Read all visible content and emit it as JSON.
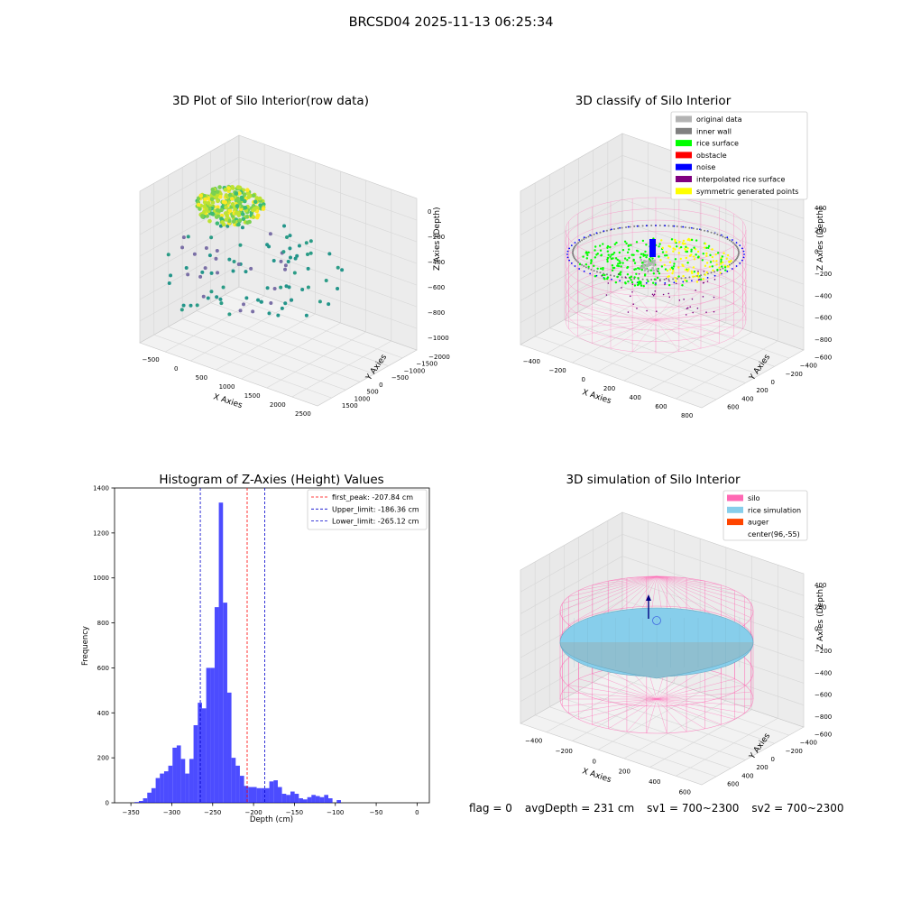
{
  "figure": {
    "suptitle": "BRCSD04 2025-11-13 06:25:34",
    "footer": {
      "flag": "flag = 0",
      "avg_depth": "avgDepth = 231 cm",
      "sv1": "sv1 = 700~2300",
      "sv2": "sv2 = 700~2300"
    }
  },
  "chart_data": [
    {
      "type": "scatter",
      "title": "3D Plot of Silo Interior(row data)",
      "xlabel": "X Axies",
      "ylabel": "Y Axies",
      "zlabel": "Z Axies (Depth)",
      "x_ticks": [
        "−500",
        "0",
        "500",
        "1000",
        "1500",
        "2000",
        "2500"
      ],
      "y_ticks": [
        "1500",
        "1000",
        "500",
        "0",
        "−500",
        "−1000",
        "−1500",
        "−2000"
      ],
      "z_ticks": [
        "0",
        "−200",
        "−400",
        "−600",
        "−800",
        "−1000"
      ],
      "xlim": [
        -600,
        2700
      ],
      "ylim": [
        -2100,
        1700
      ],
      "zlim": [
        -1050,
        50
      ],
      "colormap": "viridis",
      "cluster": {
        "x": [
          0,
          600
        ],
        "y": [
          200,
          1400
        ],
        "z": [
          -300,
          -100
        ],
        "note_colors": [
          "#fde725",
          "#7ad151",
          "#22a884"
        ]
      }
    },
    {
      "type": "scatter",
      "title": "3D classify of Silo Interior",
      "xlabel": "X Axies",
      "ylabel": "Y Axies",
      "zlabel": "Z Axies (Depth)",
      "x_ticks": [
        "−400",
        "−200",
        "0",
        "200",
        "400",
        "600",
        "800"
      ],
      "y_ticks": [
        "600",
        "400",
        "200",
        "0",
        "−200",
        "−400",
        "−600"
      ],
      "z_ticks": [
        "400",
        "200",
        "0",
        "−200",
        "−400",
        "−600",
        "−800"
      ],
      "legend_position": "top-right",
      "legend": [
        {
          "label": "original data",
          "color": "#b3b3b3"
        },
        {
          "label": "inner wall",
          "color": "#808080"
        },
        {
          "label": "rice surface",
          "color": "#00ff00"
        },
        {
          "label": "obstacle",
          "color": "#ff0000"
        },
        {
          "label": "noise",
          "color": "#0000ff"
        },
        {
          "label": "interpolated rice surface",
          "color": "#800080"
        },
        {
          "label": "symmetric generated points",
          "color": "#ffff00"
        }
      ],
      "silo_color": "#ff69b4"
    },
    {
      "type": "bar",
      "title": "Histogram of Z-Axies (Height) Values",
      "xlabel": "Depth (cm)",
      "ylabel": "Frequency",
      "xlim": [
        -370,
        15
      ],
      "ylim": [
        0,
        1400
      ],
      "x_ticks": [
        -350,
        -300,
        -250,
        -200,
        -150,
        -100,
        -50,
        0
      ],
      "y_ticks": [
        0,
        200,
        400,
        600,
        800,
        1000,
        1200,
        1400
      ],
      "bar_color": "#0000ff",
      "bin_width": 5.15,
      "bins_left": [
        -345.5,
        -340.3,
        -335.2,
        -330.0,
        -324.9,
        -319.7,
        -314.6,
        -309.4,
        -304.3,
        -299.1,
        -294.0,
        -288.8,
        -283.7,
        -278.5,
        -273.4,
        -268.2,
        -263.1,
        -257.9,
        -252.8,
        -247.6,
        -242.5,
        -237.3,
        -232.2,
        -227.0,
        -221.9,
        -216.7,
        -211.6,
        -206.4,
        -201.3,
        -196.1,
        -191.0,
        -185.8,
        -180.7,
        -175.5,
        -170.4,
        -165.2,
        -160.1,
        -154.9,
        -149.8,
        -144.6,
        -139.5,
        -134.3,
        -129.2,
        -124.0,
        -118.9,
        -113.7,
        -108.6,
        -103.4,
        -98.3,
        -93.1,
        -88.0,
        -82.8,
        -77.7,
        -72.5,
        -67.4,
        -62.2,
        -57.1,
        -51.9,
        -46.8,
        -41.6,
        -36.5,
        -31.3,
        -26.2,
        -21.0,
        -15.9,
        -10.7,
        -5.6,
        -0.4
      ],
      "values": [
        3,
        8,
        20,
        45,
        65,
        110,
        130,
        140,
        165,
        245,
        255,
        195,
        130,
        195,
        345,
        445,
        420,
        600,
        600,
        870,
        1335,
        890,
        490,
        200,
        165,
        120,
        75,
        70,
        70,
        65,
        65,
        65,
        95,
        100,
        70,
        40,
        35,
        50,
        40,
        20,
        15,
        25,
        35,
        30,
        25,
        35,
        20,
        0,
        12,
        0,
        0,
        0,
        0,
        0,
        0,
        0,
        0,
        0,
        0,
        0,
        0,
        0,
        0,
        0,
        0,
        0,
        0,
        0
      ],
      "legend_position": "top-right",
      "lines": [
        {
          "label": "first_peak: -207.84 cm",
          "x": -207.84,
          "color": "#ff0000"
        },
        {
          "label": "Upper_limit: -186.36 cm",
          "x": -186.36,
          "color": "#0000cc"
        },
        {
          "label": "Lower_limit: -265.12 cm",
          "x": -265.12,
          "color": "#0000cc"
        }
      ]
    },
    {
      "type": "scatter",
      "title": "3D simulation of Silo Interior",
      "xlabel": "X Axies",
      "ylabel": "Y Axies",
      "zlabel": "Z Axies (Depth)",
      "x_ticks": [
        "−400",
        "−200",
        "0",
        "200",
        "400",
        "600"
      ],
      "y_ticks": [
        "600",
        "400",
        "200",
        "0",
        "−200",
        "−400",
        "−600"
      ],
      "z_ticks": [
        "400",
        "200",
        "0",
        "−200",
        "−400",
        "−600",
        "−800"
      ],
      "legend_position": "top-right",
      "legend": [
        {
          "label": "silo",
          "color": "#ff69b4"
        },
        {
          "label": "rice simulation",
          "color": "#87ceeb"
        },
        {
          "label": "auger",
          "color": "#ff4500"
        },
        {
          "label": "center(96,-55)",
          "color": ""
        }
      ]
    }
  ]
}
